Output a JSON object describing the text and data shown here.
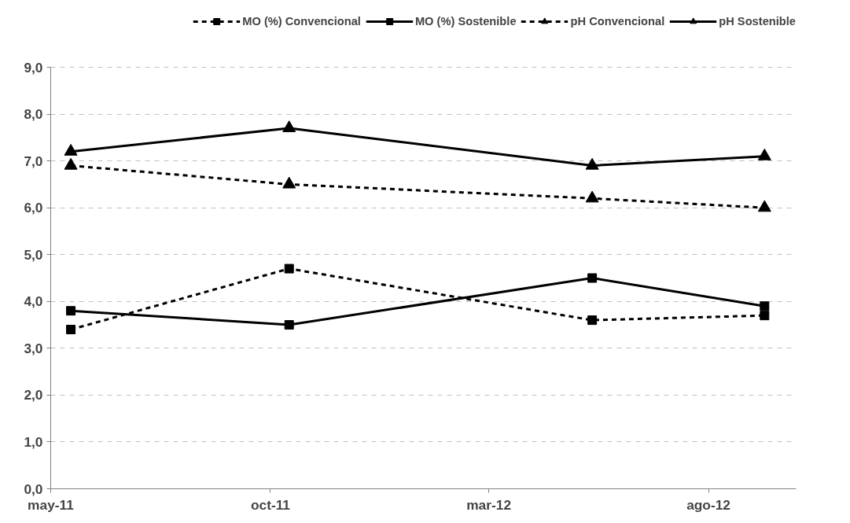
{
  "chart_data": {
    "type": "line",
    "x": [
      "2011-05-15",
      "2011-10-14",
      "2012-05-12",
      "2012-09-09"
    ],
    "series": [
      {
        "name": "MO (%) Convencional",
        "color": "#000000",
        "line_style": "dashed",
        "marker": "square",
        "values": [
          3.4,
          4.7,
          3.6,
          3.7
        ]
      },
      {
        "name": "MO (%) Sostenible",
        "color": "#000000",
        "line_style": "solid",
        "marker": "square",
        "values": [
          3.8,
          3.5,
          4.5,
          3.9
        ]
      },
      {
        "name": "pH Convencional",
        "color": "#000000",
        "line_style": "dashed",
        "marker": "triangle",
        "values": [
          6.9,
          6.5,
          6.2,
          6.0
        ]
      },
      {
        "name": "pH Sostenible",
        "color": "#000000",
        "line_style": "solid",
        "marker": "triangle",
        "values": [
          7.2,
          7.7,
          6.9,
          7.1
        ]
      }
    ],
    "xlim": [
      "2011-05-01",
      "2012-10-01"
    ],
    "xticks": [
      {
        "value": "2011-05-01",
        "label": "may-11"
      },
      {
        "value": "2011-10-01",
        "label": "oct-11"
      },
      {
        "value": "2012-03-01",
        "label": "mar-12"
      },
      {
        "value": "2012-08-01",
        "label": "ago-12"
      }
    ],
    "ylim": [
      0,
      9
    ],
    "yticks": [
      {
        "value": 0,
        "label": "0,0"
      },
      {
        "value": 1,
        "label": "1,0"
      },
      {
        "value": 2,
        "label": "2,0"
      },
      {
        "value": 3,
        "label": "3,0"
      },
      {
        "value": 4,
        "label": "4,0"
      },
      {
        "value": 5,
        "label": "5,0"
      },
      {
        "value": 6,
        "label": "6,0"
      },
      {
        "value": 7,
        "label": "7,0"
      },
      {
        "value": 8,
        "label": "8,0"
      },
      {
        "value": 9,
        "label": "9,0"
      }
    ],
    "grid": "y",
    "legend": "top"
  }
}
